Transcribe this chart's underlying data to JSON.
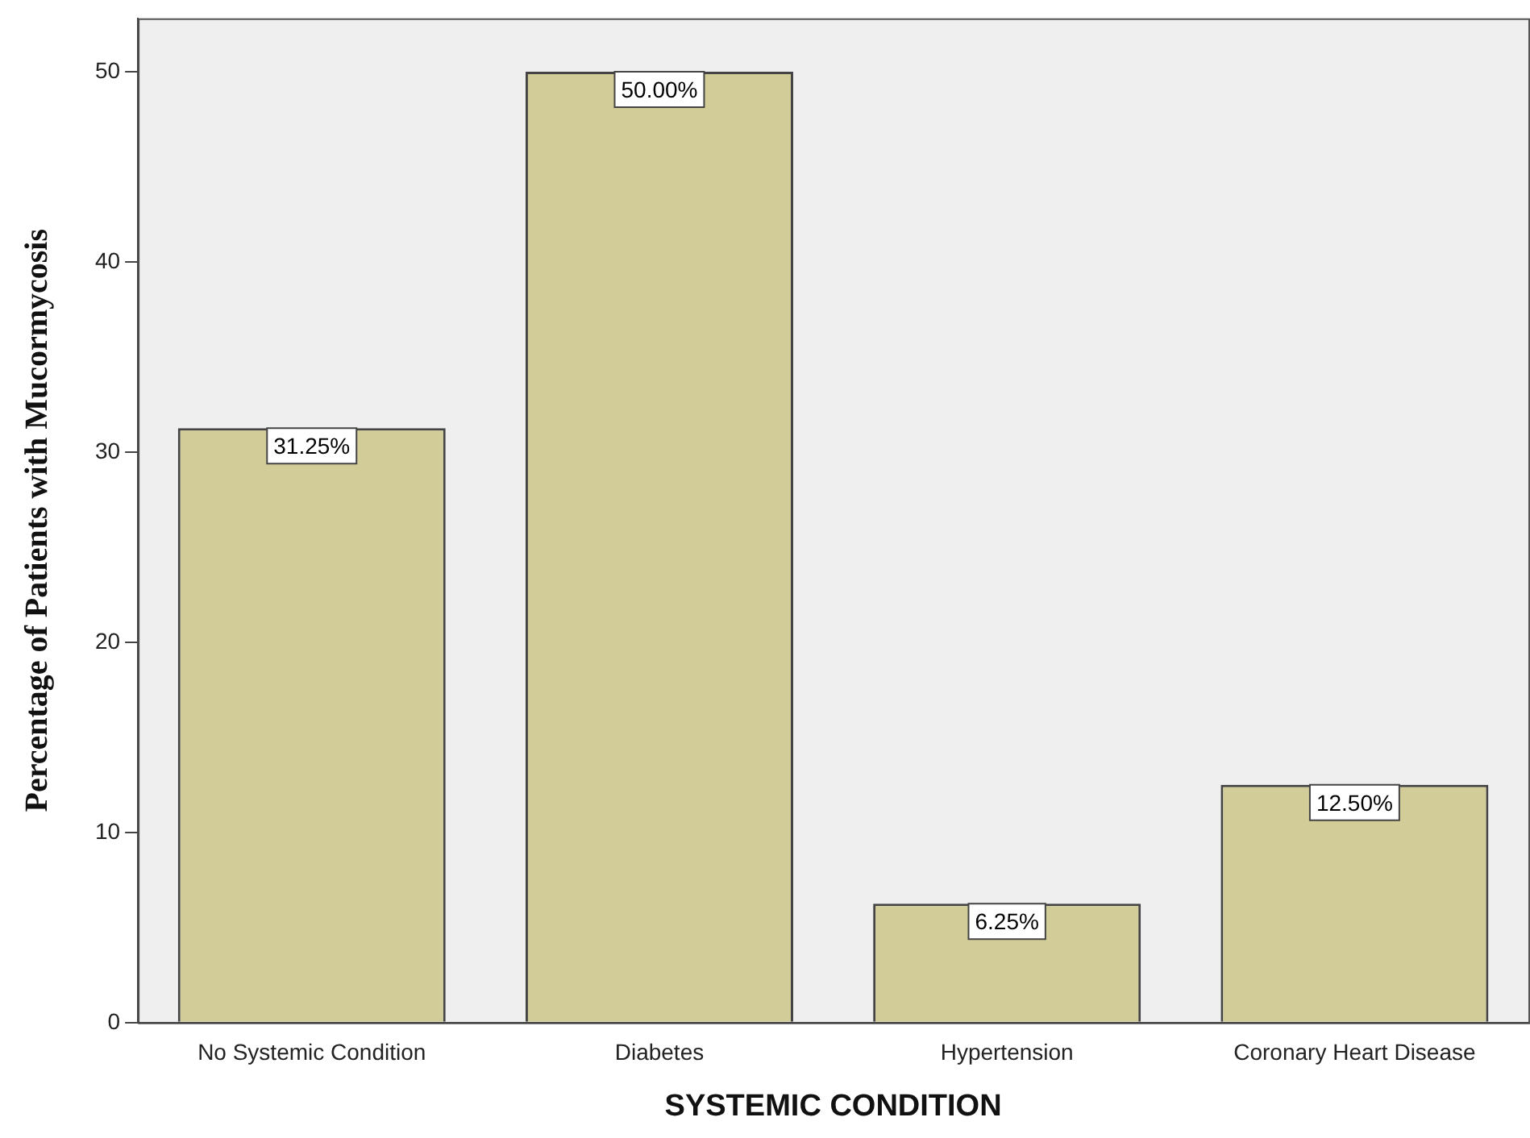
{
  "chart_data": {
    "type": "bar",
    "xlabel": "SYSTEMIC CONDITION",
    "ylabel": "Percentage of Patients with Mucormycosis",
    "categories": [
      "No Systemic Condition",
      "Diabetes",
      "Hypertension",
      "Coronary Heart Disease"
    ],
    "values": [
      31.25,
      50,
      6.25,
      12.5
    ],
    "value_labels": [
      "31.25%",
      "50.00%",
      "6.25%",
      "12.50%"
    ],
    "color": "#d2cc99",
    "ylim": [
      0,
      52.8
    ],
    "yticks": [
      0,
      10,
      20,
      30,
      40,
      50
    ],
    "grid": false,
    "legend": false
  }
}
